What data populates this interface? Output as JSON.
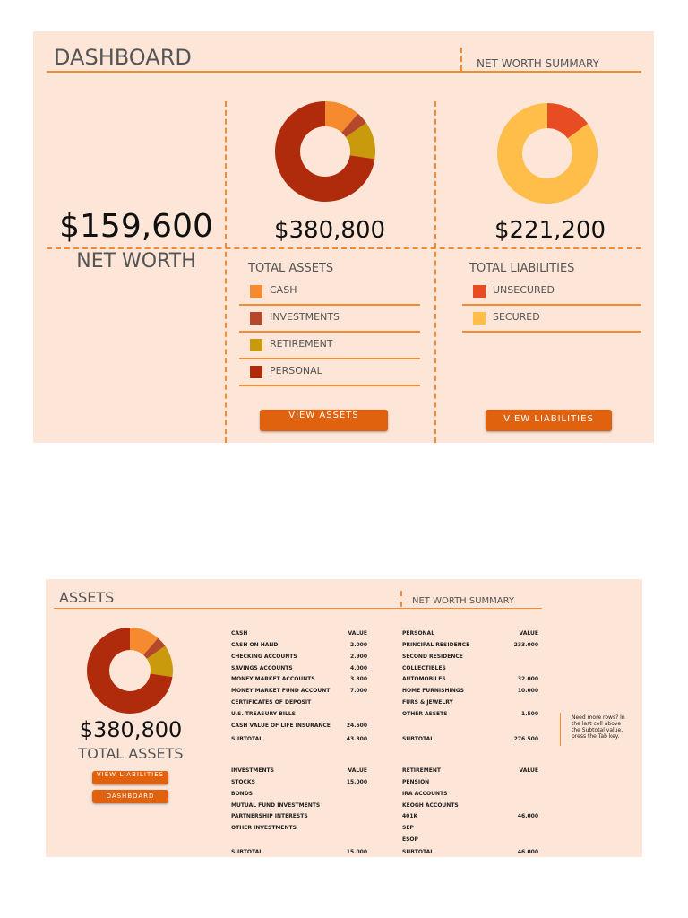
{
  "dashboard": {
    "title": "DASHBOARD",
    "tab": "NET WORTH SUMMARY",
    "net_worth": "$159,600",
    "net_worth_label": "NET WORTH",
    "assets": {
      "total": "$380,800",
      "label": "TOTAL ASSETS",
      "legend": [
        {
          "name": "CASH",
          "color": "#f58a2e"
        },
        {
          "name": "INVESTMENTS",
          "color": "#b5472a"
        },
        {
          "name": "RETIREMENT",
          "color": "#c89a0c"
        },
        {
          "name": "PERSONAL",
          "color": "#b02a0c"
        }
      ],
      "button": "VIEW ASSETS"
    },
    "liabilities": {
      "total": "$221,200",
      "label": "TOTAL LIABILITIES",
      "legend": [
        {
          "name": "UNSECURED",
          "color": "#e84c22"
        },
        {
          "name": "SECURED",
          "color": "#ffbd4a"
        }
      ],
      "button": "VIEW LIABILITIES"
    }
  },
  "asset_chart": {
    "values": [
      43300,
      15000,
      46000,
      276500
    ]
  },
  "liability_chart": {
    "values": [
      33000,
      188200
    ]
  },
  "assets_sheet": {
    "title": "ASSETS",
    "tab": "NET WORTH SUMMARY",
    "total": "$380,800",
    "label": "TOTAL ASSETS",
    "buttons": [
      "VIEW LIABILITIES",
      "DASHBOARD"
    ],
    "tables": [
      {
        "header": [
          "CASH",
          "VALUE"
        ],
        "rows": [
          [
            "CASH ON HAND",
            "2.000"
          ],
          [
            "CHECKING ACCOUNTS",
            "2.900"
          ],
          [
            "SAVINGS ACCOUNTS",
            "4.000"
          ],
          [
            "MONEY MARKET ACCOUNTS",
            "3.300"
          ],
          [
            "MONEY MARKET FUND ACCOUNT",
            "7.000"
          ],
          [
            "CERTIFICATES OF DEPOSIT"
          ],
          [
            "U.S. TREASURY BILLS"
          ],
          [
            "CASH VALUE OF LIFE INSURANCE",
            "24.500"
          ]
        ],
        "subtotal": [
          "SUBTOTAL",
          "43.300"
        ]
      },
      {
        "header": [
          "PERSONAL",
          "VALUE"
        ],
        "rows": [
          [
            "PRINCIPAL RESIDENCE",
            "233.000"
          ],
          [
            "SECOND RESIDENCE"
          ],
          [
            "COLLECTIBLES"
          ],
          [
            "AUTOMOBILES",
            "32.000"
          ],
          [
            "HOME FURNISHINGS",
            "10.000"
          ],
          [
            "FURS & JEWELRY"
          ],
          [
            "OTHER ASSETS",
            "1.500"
          ]
        ],
        "subtotal": [
          "SUBTOTAL",
          "276.500"
        ]
      },
      {
        "header": [
          "INVESTMENTS",
          "VALUE"
        ],
        "rows": [
          [
            "STOCKS",
            "15.000"
          ],
          [
            "BONDS"
          ],
          [
            "MUTUAL FUND INVESTMENTS"
          ],
          [
            "PARTNERSHIP INTERESTS"
          ],
          [
            "OTHER INVESTMENTS"
          ]
        ],
        "subtotal": [
          "SUBTOTAL",
          "15.000"
        ]
      },
      {
        "header": [
          "RETIREMENT",
          "VALUE"
        ],
        "rows": [
          [
            "PENSION"
          ],
          [
            "IRA ACCOUNTS"
          ],
          [
            "KEOGH ACCOUNTS"
          ],
          [
            "401K",
            "46.000"
          ],
          [
            "SEP"
          ],
          [
            "ESOP"
          ]
        ],
        "subtotal": [
          "SUBTOTAL",
          "46.000"
        ]
      }
    ],
    "note": "Need more rows? In the last cell above the Subtotal value, press the Tab key."
  }
}
